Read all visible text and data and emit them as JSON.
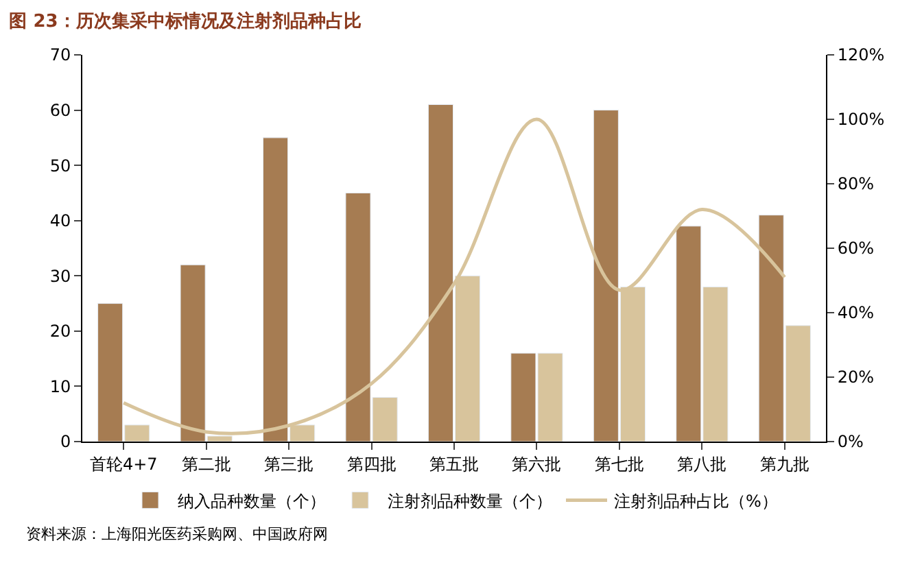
{
  "chart_data": {
    "type": "bar",
    "title": "图 23：历次集采中标情况及注射剂品种占比",
    "categories": [
      "首轮4+7",
      "第二批",
      "第三批",
      "第四批",
      "第五批",
      "第六批",
      "第七批",
      "第八批",
      "第九批"
    ],
    "series": [
      {
        "name": "纳入品种数量（个）",
        "color": "#a67c52",
        "values": [
          25,
          32,
          55,
          45,
          61,
          16,
          60,
          39,
          41
        ]
      },
      {
        "name": "注射剂品种数量（个）",
        "color": "#d8c49c",
        "values": [
          3,
          1,
          3,
          8,
          30,
          16,
          28,
          28,
          21
        ]
      },
      {
        "name": "注射剂品种占比（%）",
        "type": "line",
        "axis": "y2",
        "color": "#d8c49c",
        "values": [
          12,
          3,
          5,
          18,
          49,
          100,
          47,
          72,
          51
        ]
      }
    ],
    "ylim": [
      0,
      70
    ],
    "yticks": [
      0,
      10,
      20,
      30,
      40,
      50,
      60,
      70
    ],
    "y2lim": [
      0,
      120
    ],
    "y2ticks": [
      {
        "value": 0,
        "label": "0%"
      },
      {
        "value": 20,
        "label": "20%"
      },
      {
        "value": 40,
        "label": "40%"
      },
      {
        "value": 60,
        "label": "60%"
      },
      {
        "value": 80,
        "label": "80%"
      },
      {
        "value": 100,
        "label": "100%"
      },
      {
        "value": 120,
        "label": "120%"
      }
    ],
    "legend": "bottom",
    "marker": "none",
    "line_style": "solid",
    "annotations": [
      "资料来源：上海阳光医药采购网、中国政府网"
    ]
  }
}
